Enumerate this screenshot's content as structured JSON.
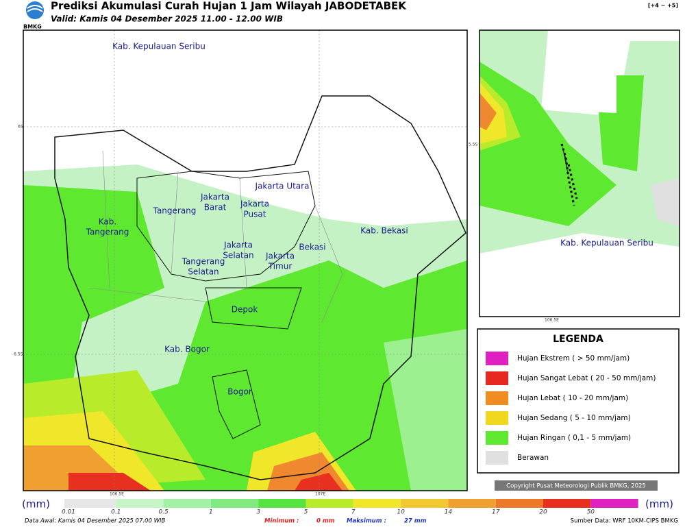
{
  "header": {
    "title": "Prediksi Akumulasi Curah Hujan 1 Jam Wilayah JABODETABEK",
    "valid": "Valid: Kamis 04 Desember 2025 11.00 - 12.00 WIB",
    "logo": "BMKG",
    "offset": "[+4 ~ +5]"
  },
  "map": {
    "labels": [
      [
        "Kab. Kepulauan Seribu"
      ],
      [
        "Jakarta Utara"
      ],
      [
        "Jakarta",
        "Barat"
      ],
      [
        "Jakarta",
        "Pusat"
      ],
      [
        "Tangerang"
      ],
      [
        "Kab.",
        "Tangerang"
      ],
      [
        "Jakarta",
        "Selatan"
      ],
      [
        "Jakarta",
        "Timur"
      ],
      [
        "Bekasi"
      ],
      [
        "Kab. Bekasi"
      ],
      [
        "Tangerang",
        "Selatan"
      ],
      [
        "Depok"
      ],
      [
        "Kab. Bogor"
      ],
      [
        "Bogor"
      ]
    ],
    "coords": [
      "6S",
      "6.5S",
      "106.5E",
      "107E"
    ]
  },
  "inset": {
    "label": "Kab. Kepulauan Seribu",
    "coords": [
      "5.5S",
      "106.5E"
    ]
  },
  "legend": {
    "title": "LEGENDA",
    "items": [
      "Hujan Ekstrem ( > 50 mm/jam)",
      "Hujan Sangat Lebat ( 20 - 50 mm/jam)",
      "Hujan Lebat ( 10 - 20 mm/jam)",
      "Hujan Sedang ( 5 - 10 mm/jam)",
      "Hujan Ringan ( 0,1 - 5 mm/jam)",
      "Berawan"
    ]
  },
  "copyright": "Copyright Pusat Meteorologi Publik BMKG, 2025",
  "colorbar": {
    "unit_left": "(mm)",
    "unit_right": "(mm)",
    "ticks": [
      "0.01",
      "0.1",
      "0.5",
      "1",
      "3",
      "5",
      "7",
      "10",
      "14",
      "17",
      "20",
      "50"
    ]
  },
  "footer": {
    "data_awal": "Data Awal: Kamis 04 Desember 2025 07.00 WIB",
    "minimum": "Minimum :",
    "minimum_value": "0 mm",
    "maximum": "Maksimum :",
    "maximum_value": "27 mm",
    "source": "Sumber Data: WRF 10KM-CIPS BMKG"
  }
}
